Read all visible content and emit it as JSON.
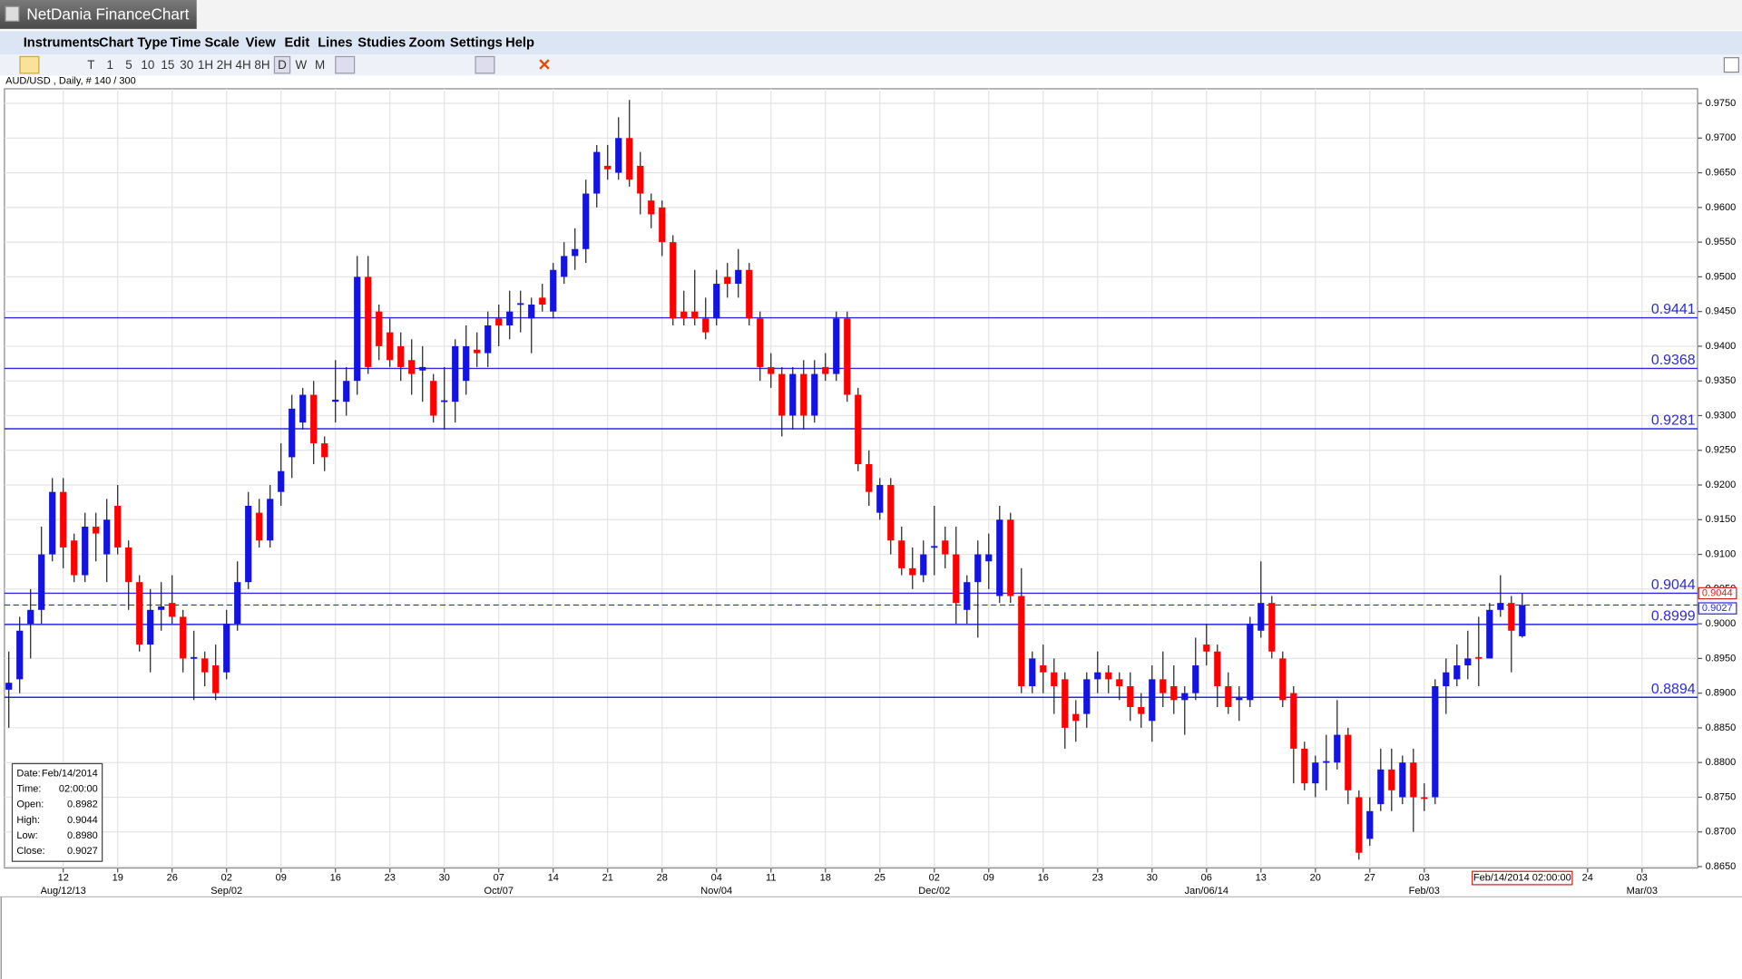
{
  "window": {
    "title": "NetDania FinanceChart",
    "menu": [
      "Instruments",
      "Chart Type",
      "Time Scale",
      "View",
      "Edit",
      "Lines",
      "Studies",
      "Zoom",
      "Settings",
      "Help"
    ],
    "timeframes": [
      "T",
      "1",
      "5",
      "10",
      "15",
      "30",
      "1H",
      "2H",
      "4H",
      "8H",
      "D",
      "W",
      "M"
    ]
  },
  "info_box": {
    "rows": [
      [
        "Date:",
        "Feb/14/2014"
      ],
      [
        "Time:",
        "02:00:00"
      ],
      [
        "Open:",
        "0.8982"
      ],
      [
        "High:",
        "0.9044"
      ],
      [
        "Low:",
        "0.8980"
      ],
      [
        "Close:",
        "0.9027"
      ]
    ]
  },
  "chart_data": {
    "type": "candlestick",
    "subtitle": "AUD/USD , Daily, # 140 / 300",
    "up_color": "#1414e0",
    "down_color": "#ff0000",
    "level_color": "#2a2ae0",
    "grid": true,
    "open": [
      0.8905,
      0.892,
      0.9,
      0.902,
      0.91,
      0.919,
      0.912,
      0.907,
      0.914,
      0.91,
      0.917,
      0.911,
      0.906,
      0.897,
      0.902,
      0.903,
      0.901,
      0.895,
      0.895,
      0.894,
      0.893,
      0.9,
      0.906,
      0.916,
      0.912,
      0.919,
      0.924,
      0.929,
      0.933,
      0.926,
      0.932,
      0.932,
      0.935,
      0.95,
      0.945,
      0.942,
      0.94,
      0.938,
      0.9365,
      0.935,
      0.932,
      0.932,
      0.935,
      0.9395,
      0.939,
      0.944,
      0.943,
      0.946,
      0.944,
      0.947,
      0.945,
      0.95,
      0.953,
      0.954,
      0.962,
      0.966,
      0.965,
      0.97,
      0.966,
      0.961,
      0.96,
      0.955,
      0.945,
      0.945,
      0.944,
      0.944,
      0.95,
      0.949,
      0.951,
      0.944,
      0.937,
      0.936,
      0.93,
      0.936,
      0.93,
      0.937,
      0.936,
      0.944,
      0.933,
      0.923,
      0.916,
      0.92,
      0.912,
      0.908,
      0.907,
      0.911,
      0.912,
      0.91,
      0.902,
      0.906,
      0.909,
      0.904,
      0.915,
      0.904,
      0.891,
      0.894,
      0.893,
      0.892,
      0.887,
      0.887,
      0.892,
      0.893,
      0.892,
      0.891,
      0.888,
      0.886,
      0.892,
      0.891,
      0.889,
      0.89,
      0.897,
      0.896,
      0.891,
      0.889,
      0.889,
      0.899,
      0.903,
      0.895,
      0.89,
      0.882,
      0.877,
      0.88,
      0.88,
      0.884,
      0.875,
      0.869,
      0.874,
      0.879,
      0.875,
      0.88,
      0.875,
      0.875,
      0.891,
      0.892,
      0.894,
      0.8952,
      0.895,
      0.902,
      0.903,
      0.8982
    ],
    "high": [
      0.896,
      0.901,
      0.905,
      0.914,
      0.921,
      0.921,
      0.913,
      0.916,
      0.916,
      0.918,
      0.92,
      0.912,
      0.907,
      0.905,
      0.906,
      0.907,
      0.902,
      0.899,
      0.896,
      0.897,
      0.902,
      0.909,
      0.919,
      0.918,
      0.92,
      0.926,
      0.933,
      0.934,
      0.935,
      0.927,
      0.938,
      0.937,
      0.953,
      0.953,
      0.946,
      0.944,
      0.942,
      0.941,
      0.94,
      0.936,
      0.937,
      0.941,
      0.943,
      0.942,
      0.945,
      0.946,
      0.948,
      0.948,
      0.947,
      0.949,
      0.952,
      0.955,
      0.957,
      0.964,
      0.969,
      0.969,
      0.973,
      0.9755,
      0.968,
      0.962,
      0.961,
      0.956,
      0.948,
      0.951,
      0.947,
      0.951,
      0.952,
      0.954,
      0.952,
      0.945,
      0.939,
      0.937,
      0.937,
      0.938,
      0.938,
      0.939,
      0.945,
      0.945,
      0.934,
      0.925,
      0.921,
      0.921,
      0.914,
      0.911,
      0.912,
      0.917,
      0.914,
      0.914,
      0.907,
      0.912,
      0.913,
      0.917,
      0.916,
      0.908,
      0.896,
      0.897,
      0.895,
      0.893,
      0.889,
      0.893,
      0.896,
      0.894,
      0.893,
      0.893,
      0.89,
      0.894,
      0.896,
      0.894,
      0.891,
      0.898,
      0.9,
      0.897,
      0.893,
      0.891,
      0.901,
      0.909,
      0.904,
      0.896,
      0.891,
      0.883,
      0.881,
      0.884,
      0.889,
      0.885,
      0.876,
      0.875,
      0.882,
      0.882,
      0.881,
      0.882,
      0.877,
      0.892,
      0.895,
      0.897,
      0.899,
      0.901,
      0.903,
      0.907,
      0.904,
      0.9044
    ],
    "low": [
      0.885,
      0.89,
      0.895,
      0.9,
      0.909,
      0.908,
      0.906,
      0.906,
      0.909,
      0.906,
      0.91,
      0.902,
      0.896,
      0.893,
      0.899,
      0.9,
      0.893,
      0.889,
      0.891,
      0.889,
      0.892,
      0.899,
      0.905,
      0.911,
      0.911,
      0.917,
      0.921,
      0.928,
      0.923,
      0.922,
      0.929,
      0.93,
      0.933,
      0.936,
      0.938,
      0.937,
      0.935,
      0.933,
      0.932,
      0.929,
      0.928,
      0.929,
      0.933,
      0.937,
      0.937,
      0.94,
      0.941,
      0.942,
      0.939,
      0.945,
      0.944,
      0.949,
      0.951,
      0.952,
      0.96,
      0.964,
      0.964,
      0.963,
      0.959,
      0.957,
      0.953,
      0.943,
      0.943,
      0.943,
      0.941,
      0.943,
      0.947,
      0.947,
      0.943,
      0.935,
      0.934,
      0.927,
      0.928,
      0.928,
      0.929,
      0.935,
      0.935,
      0.932,
      0.922,
      0.917,
      0.915,
      0.91,
      0.907,
      0.905,
      0.906,
      0.907,
      0.908,
      0.9,
      0.9,
      0.898,
      0.905,
      0.903,
      0.903,
      0.89,
      0.89,
      0.89,
      0.887,
      0.882,
      0.883,
      0.885,
      0.89,
      0.89,
      0.889,
      0.886,
      0.885,
      0.883,
      0.888,
      0.887,
      0.884,
      0.889,
      0.894,
      0.888,
      0.887,
      0.886,
      0.888,
      0.898,
      0.895,
      0.888,
      0.877,
      0.876,
      0.875,
      0.876,
      0.879,
      0.874,
      0.866,
      0.868,
      0.873,
      0.873,
      0.874,
      0.87,
      0.873,
      0.874,
      0.887,
      0.891,
      0.892,
      0.891,
      0.895,
      0.901,
      0.893,
      0.898
    ],
    "close": [
      0.8915,
      0.899,
      0.902,
      0.91,
      0.919,
      0.911,
      0.907,
      0.914,
      0.913,
      0.915,
      0.911,
      0.906,
      0.897,
      0.902,
      0.9025,
      0.901,
      0.895,
      0.8952,
      0.893,
      0.89,
      0.9,
      0.906,
      0.917,
      0.912,
      0.918,
      0.922,
      0.931,
      0.933,
      0.926,
      0.924,
      0.9323,
      0.935,
      0.95,
      0.937,
      0.94,
      0.938,
      0.937,
      0.936,
      0.937,
      0.93,
      0.9322,
      0.94,
      0.94,
      0.939,
      0.943,
      0.943,
      0.945,
      0.9462,
      0.946,
      0.946,
      0.951,
      0.953,
      0.954,
      0.962,
      0.968,
      0.9655,
      0.97,
      0.964,
      0.962,
      0.959,
      0.955,
      0.944,
      0.944,
      0.944,
      0.942,
      0.949,
      0.949,
      0.951,
      0.944,
      0.937,
      0.936,
      0.93,
      0.936,
      0.93,
      0.936,
      0.936,
      0.944,
      0.933,
      0.923,
      0.919,
      0.92,
      0.912,
      0.908,
      0.907,
      0.91,
      0.9112,
      0.91,
      0.903,
      0.906,
      0.91,
      0.91,
      0.915,
      0.904,
      0.891,
      0.895,
      0.893,
      0.891,
      0.885,
      0.886,
      0.892,
      0.893,
      0.892,
      0.891,
      0.888,
      0.887,
      0.892,
      0.89,
      0.889,
      0.89,
      0.894,
      0.896,
      0.891,
      0.888,
      0.8893,
      0.9,
      0.903,
      0.896,
      0.889,
      0.882,
      0.877,
      0.88,
      0.8802,
      0.884,
      0.876,
      0.867,
      0.873,
      0.879,
      0.876,
      0.88,
      0.875,
      0.8748,
      0.891,
      0.893,
      0.894,
      0.895,
      0.895,
      0.902,
      0.903,
      0.899,
      0.9027
    ],
    "xlim": [
      -0.4,
      155.1
    ],
    "xticks": [
      {
        "value": 5,
        "label": "12"
      },
      {
        "value": 10,
        "label": "19"
      },
      {
        "value": 15,
        "label": "26"
      },
      {
        "value": 20,
        "label": "02"
      },
      {
        "value": 25,
        "label": "09"
      },
      {
        "value": 30,
        "label": "16"
      },
      {
        "value": 35,
        "label": "23"
      },
      {
        "value": 40,
        "label": "30"
      },
      {
        "value": 45,
        "label": "07"
      },
      {
        "value": 50,
        "label": "14"
      },
      {
        "value": 55,
        "label": "21"
      },
      {
        "value": 60,
        "label": "28"
      },
      {
        "value": 65,
        "label": "04"
      },
      {
        "value": 70,
        "label": "11"
      },
      {
        "value": 75,
        "label": "18"
      },
      {
        "value": 80,
        "label": "25"
      },
      {
        "value": 85,
        "label": "02"
      },
      {
        "value": 90,
        "label": "09"
      },
      {
        "value": 95,
        "label": "16"
      },
      {
        "value": 100,
        "label": "23"
      },
      {
        "value": 105,
        "label": "30"
      },
      {
        "value": 110,
        "label": "06"
      },
      {
        "value": 115,
        "label": "13"
      },
      {
        "value": 120,
        "label": "20"
      },
      {
        "value": 125,
        "label": "27"
      },
      {
        "value": 130,
        "label": "03"
      },
      {
        "value": 145,
        "label": "24"
      },
      {
        "value": 150,
        "label": "03"
      }
    ],
    "xticks_month": [
      {
        "value": 5,
        "label": "Aug/12/13"
      },
      {
        "value": 20,
        "label": "Sep/02"
      },
      {
        "value": 45,
        "label": "Oct/07"
      },
      {
        "value": 65,
        "label": "Nov/04"
      },
      {
        "value": 85,
        "label": "Dec/02"
      },
      {
        "value": 110,
        "label": "Jan/06/14"
      },
      {
        "value": 130,
        "label": "Feb/03"
      },
      {
        "value": 150,
        "label": "Mar/03"
      }
    ],
    "cursor": {
      "value": 139,
      "label": "Feb/14/2014 02:00:00"
    },
    "ylim": [
      0.8648,
      0.9771
    ],
    "yticks": [
      {
        "value": 0.865,
        "label": "0.8650"
      },
      {
        "value": 0.87,
        "label": "0.8700"
      },
      {
        "value": 0.875,
        "label": "0.8750"
      },
      {
        "value": 0.88,
        "label": "0.8800"
      },
      {
        "value": 0.885,
        "label": "0.8850"
      },
      {
        "value": 0.89,
        "label": "0.8900"
      },
      {
        "value": 0.895,
        "label": "0.8950"
      },
      {
        "value": 0.9,
        "label": "0.9000"
      },
      {
        "value": 0.905,
        "label": "0.9050"
      },
      {
        "value": 0.91,
        "label": "0.9100"
      },
      {
        "value": 0.915,
        "label": "0.9150"
      },
      {
        "value": 0.92,
        "label": "0.9200"
      },
      {
        "value": 0.925,
        "label": "0.9250"
      },
      {
        "value": 0.93,
        "label": "0.9300"
      },
      {
        "value": 0.935,
        "label": "0.9350"
      },
      {
        "value": 0.94,
        "label": "0.9400"
      },
      {
        "value": 0.945,
        "label": "0.9450"
      },
      {
        "value": 0.95,
        "label": "0.9500"
      },
      {
        "value": 0.955,
        "label": "0.9550"
      },
      {
        "value": 0.96,
        "label": "0.9600"
      },
      {
        "value": 0.965,
        "label": "0.9650"
      },
      {
        "value": 0.97,
        "label": "0.9700"
      },
      {
        "value": 0.975,
        "label": "0.9750"
      }
    ],
    "levels": [
      0.9441,
      0.9368,
      0.9281,
      0.9044,
      0.8999,
      0.8894
    ],
    "high_marker": 0.9044,
    "current_price": 0.9027
  }
}
